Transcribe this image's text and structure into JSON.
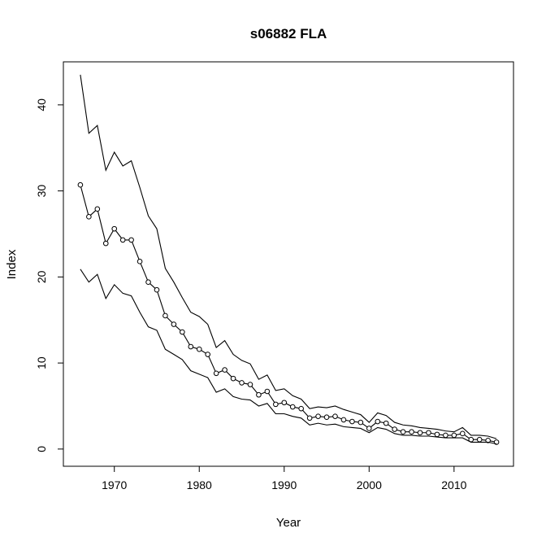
{
  "chart_data": {
    "type": "line",
    "title": "s06882 FLA",
    "xlabel": "Year",
    "ylabel": "Index",
    "xlim": [
      1964,
      2017
    ],
    "ylim": [
      -2,
      45
    ],
    "xticks": [
      1970,
      1980,
      1990,
      2000,
      2010
    ],
    "yticks": [
      0,
      10,
      20,
      30,
      40
    ],
    "grid": false,
    "legend": "none",
    "x": [
      1966,
      1967,
      1968,
      1969,
      1970,
      1971,
      1972,
      1973,
      1974,
      1975,
      1976,
      1977,
      1978,
      1979,
      1980,
      1981,
      1982,
      1983,
      1984,
      1985,
      1986,
      1987,
      1988,
      1989,
      1990,
      1991,
      1992,
      1993,
      1994,
      1995,
      1996,
      1997,
      1998,
      1999,
      2000,
      2001,
      2002,
      2003,
      2004,
      2005,
      2006,
      2007,
      2008,
      2009,
      2010,
      2011,
      2012,
      2013,
      2014,
      2015
    ],
    "series": [
      {
        "role": "upper",
        "marker": "none",
        "values": [
          43.5,
          36.7,
          37.6,
          32.4,
          34.5,
          32.9,
          33.5,
          30.4,
          27.1,
          25.6,
          21.0,
          19.4,
          17.6,
          15.9,
          15.4,
          14.5,
          11.8,
          12.6,
          11.0,
          10.3,
          9.9,
          8.1,
          8.6,
          6.8,
          7.0,
          6.2,
          5.8,
          4.7,
          4.9,
          4.8,
          5.0,
          4.6,
          4.3,
          4.0,
          3.1,
          4.2,
          3.9,
          3.1,
          2.8,
          2.7,
          2.5,
          2.4,
          2.3,
          2.1,
          2.0,
          2.5,
          1.6,
          1.6,
          1.5,
          1.2
        ]
      },
      {
        "role": "estimate",
        "marker": "circle",
        "values": [
          30.7,
          27.0,
          27.9,
          23.9,
          25.6,
          24.3,
          24.3,
          21.8,
          19.4,
          18.5,
          15.5,
          14.5,
          13.6,
          11.9,
          11.6,
          11.0,
          8.8,
          9.2,
          8.2,
          7.7,
          7.5,
          6.3,
          6.7,
          5.2,
          5.4,
          4.9,
          4.7,
          3.6,
          3.8,
          3.7,
          3.8,
          3.4,
          3.2,
          3.1,
          2.4,
          3.2,
          3.0,
          2.3,
          2.0,
          2.0,
          1.9,
          1.9,
          1.7,
          1.6,
          1.6,
          1.8,
          1.1,
          1.1,
          1.0,
          0.8
        ]
      },
      {
        "role": "lower",
        "marker": "none",
        "values": [
          20.9,
          19.4,
          20.3,
          17.5,
          19.1,
          18.1,
          17.8,
          15.9,
          14.2,
          13.8,
          11.6,
          11.0,
          10.4,
          9.1,
          8.7,
          8.3,
          6.6,
          7.0,
          6.1,
          5.8,
          5.7,
          5.0,
          5.3,
          4.1,
          4.1,
          3.8,
          3.6,
          2.8,
          3.0,
          2.8,
          2.9,
          2.6,
          2.5,
          2.4,
          1.9,
          2.5,
          2.3,
          1.8,
          1.6,
          1.6,
          1.5,
          1.5,
          1.4,
          1.3,
          1.3,
          1.3,
          0.8,
          0.8,
          0.8,
          0.6
        ]
      }
    ]
  },
  "colors": {
    "line": "#000000",
    "background": "#ffffff"
  }
}
